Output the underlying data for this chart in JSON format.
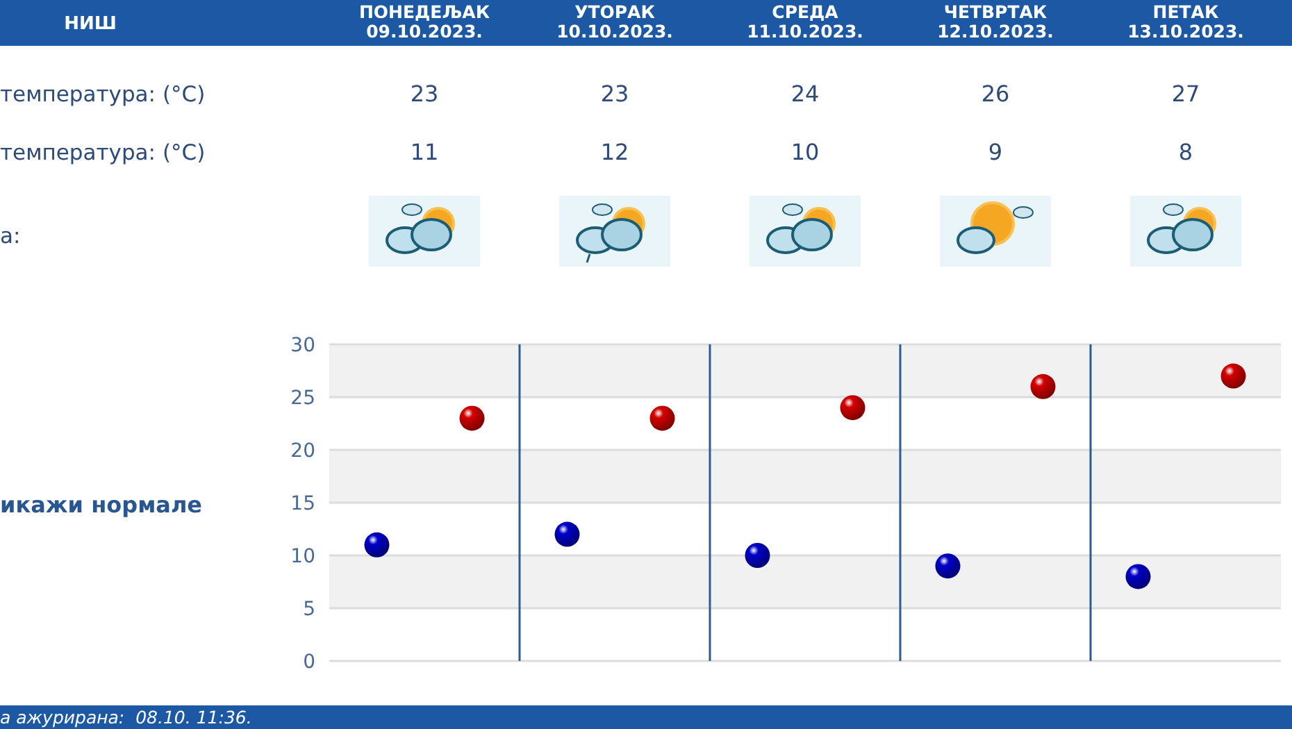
{
  "chart_data": {
    "type": "scatter",
    "title": "НИШ",
    "categories": [
      null,
      null,
      null,
      null,
      null
    ],
    "series": [
      {
        "color": "#d40000",
        "values": [
          23,
          23,
          24,
          26,
          27
        ]
      },
      {
        "color": "#0000c8",
        "values": [
          11,
          12,
          10,
          9,
          8
        ]
      }
    ],
    "ylim": [
      0,
      30
    ],
    "yticks": [
      0,
      5,
      10,
      15,
      20,
      25,
      30
    ],
    "grid": "y",
    "marker": "circle",
    "data_labels": true,
    "annotations": [
      "а:",
      "икажи нормале",
      "а ажурирана:  08.10. 11:36.",
      "температура: (°C)",
      "температура: (°C)",
      "ПОНЕДЕЉАК\n09.10.2023.",
      "УТОРАК\n10.10.2023.",
      "СРЕДА\n11.10.2023.",
      "ЧЕТВРТАК\n12.10.2023.",
      "ПЕТАК\n13.10.2023."
    ]
  }
}
